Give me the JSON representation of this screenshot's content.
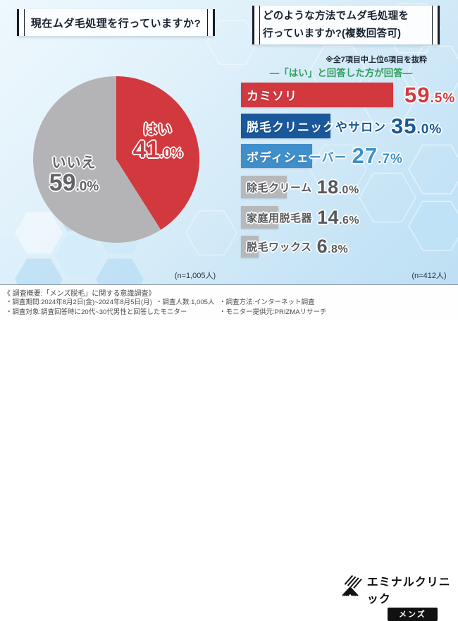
{
  "colors": {
    "red": "#d2393f",
    "dark_blue": "#19589a",
    "mid_blue": "#3f8fca",
    "gray_bar": "#b7b8ba",
    "gray_text": "#57585b",
    "pie_gray": "#b4b4b6",
    "green": "#2f9e5c"
  },
  "left_chart": {
    "title": "現在ムダ毛処理を行っていますか?",
    "n": "(n=1,005人)",
    "slices": [
      {
        "label": "はい",
        "big": "41",
        "small": ".0%",
        "value": 41.0,
        "color": "#d2393f"
      },
      {
        "label": "いいえ",
        "big": "59",
        "small": ".0%",
        "value": 59.0,
        "color": "#b4b4b6"
      }
    ]
  },
  "right_chart": {
    "title_line1": "どのような方法でムダ毛処理を",
    "title_line2": "行っていますか?(複数回答可)",
    "note": "※全7項目中上位6項目を抜粋",
    "subtitle": "―「はい」と回答した方が回答―",
    "n": "(n=412人)",
    "rows": [
      {
        "on": "カミソリ",
        "off": "",
        "big": "59",
        "small": ".5%",
        "value": 59.5,
        "bar_color": "#d2393f",
        "text_color": "#d2393f"
      },
      {
        "on": "脱毛クリニック",
        "off": "やサロン",
        "big": "35",
        "small": ".0%",
        "value": 35.0,
        "bar_color": "#19589a",
        "text_color": "#19589a"
      },
      {
        "on": "ボディシェ",
        "off": "ーバー",
        "big": "27",
        "small": ".7%",
        "value": 27.7,
        "bar_color": "#3f8fca",
        "text_color": "#3f8fca"
      },
      {
        "on": "",
        "off": "除毛クリーム",
        "big": "18",
        "small": ".0%",
        "value": 18.0,
        "bar_color": "#b7b8ba",
        "text_color": "#57585b"
      },
      {
        "on": "",
        "off": "家庭用脱毛器",
        "big": "14",
        "small": ".6%",
        "value": 14.6,
        "bar_color": "#b7b8ba",
        "text_color": "#57585b"
      },
      {
        "on": "",
        "off": "脱毛ワックス",
        "big": "6",
        "small": ".8%",
        "value": 6.8,
        "bar_color": "#b7b8ba",
        "text_color": "#57585b"
      }
    ]
  },
  "chart_data": [
    {
      "type": "pie",
      "title": "現在ムダ毛処理を行っていますか?",
      "labels": [
        "はい",
        "いいえ"
      ],
      "values": [
        41.0,
        59.0
      ],
      "colors": [
        "#d2393f",
        "#b4b4b6"
      ],
      "sample": "(n=1,005人)",
      "start_angle": "top, clockwise, はい first"
    },
    {
      "type": "bar",
      "title": "どのような方法でムダ毛処理を行っていますか?(複数回答可)",
      "note": "※全7項目中上位6項目を抜粋",
      "subtitle": "―「はい」と回答した方が回答―",
      "categories": [
        "カミソリ",
        "脱毛クリニックやサロン",
        "ボディシェーバー",
        "除毛クリーム",
        "家庭用脱毛器",
        "脱毛ワックス"
      ],
      "values": [
        59.5,
        35.0,
        27.7,
        18.0,
        14.6,
        6.8
      ],
      "bar_colors": [
        "#d2393f",
        "#19589a",
        "#3f8fca",
        "#b7b8ba",
        "#b7b8ba",
        "#b7b8ba"
      ],
      "orientation": "horizontal",
      "xlim": [
        0,
        65
      ],
      "sample": "(n=412人)"
    }
  ],
  "footer": {
    "heading": "《 調査概要:「メンズ脱毛」に関する意識調査》",
    "bullet1": "・調査期間:2024年8月2日(金)~2024年8月5日(月)",
    "bullet2": "・調査人数:1,005人",
    "bullet3": "・調査方法:インターネット調査",
    "bullet4": "・調査対象:調査回答時に20代~30代男性と回答したモニター",
    "bullet5": "・モニター提供元:PRIZMAリサーチ"
  },
  "logo": {
    "name": "エミナルクリニック",
    "badge": "メンズ"
  }
}
